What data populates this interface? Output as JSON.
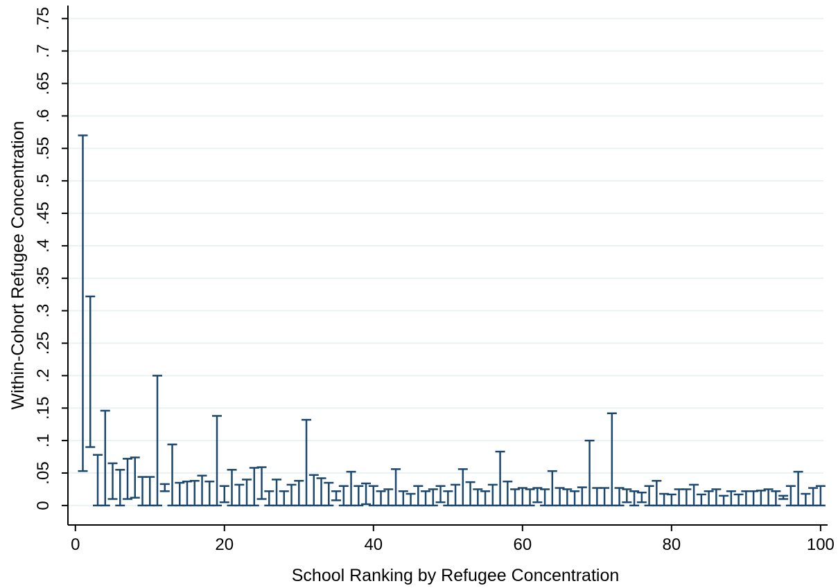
{
  "chart_data": {
    "type": "range-bar",
    "xlabel": "School Ranking by Refugee Concentration",
    "ylabel": "Within-Cohort Refugee Concentration",
    "xlim": [
      -1,
      101.5
    ],
    "ylim": [
      -0.03,
      0.77
    ],
    "xticks": [
      0,
      20,
      40,
      60,
      80,
      100
    ],
    "xtick_labels": [
      "0",
      "20",
      "40",
      "60",
      "80",
      "100"
    ],
    "yticks": [
      0,
      0.05,
      0.1,
      0.15,
      0.2,
      0.25,
      0.3,
      0.35,
      0.4,
      0.45,
      0.5,
      0.55,
      0.6,
      0.65,
      0.7,
      0.75
    ],
    "ytick_labels": [
      "0",
      ".05",
      ".1",
      ".15",
      ".2",
      ".25",
      ".3",
      ".35",
      ".4",
      ".45",
      ".5",
      ".55",
      ".6",
      ".65",
      ".7",
      ".75"
    ],
    "grid": true,
    "colors": {
      "bars": "#1a476f",
      "grid": "#eaf2f3",
      "axis": "#000000"
    },
    "x": [
      1,
      2,
      3,
      4,
      5,
      6,
      7,
      8,
      9,
      10,
      11,
      12,
      13,
      14,
      15,
      16,
      17,
      18,
      19,
      20,
      21,
      22,
      23,
      24,
      25,
      26,
      27,
      28,
      29,
      30,
      31,
      32,
      33,
      34,
      35,
      36,
      37,
      38,
      39,
      40,
      41,
      42,
      43,
      44,
      45,
      46,
      47,
      48,
      49,
      50,
      51,
      52,
      53,
      54,
      55,
      56,
      57,
      58,
      59,
      60,
      61,
      62,
      63,
      64,
      65,
      66,
      67,
      68,
      69,
      70,
      71,
      72,
      73,
      74,
      75,
      76,
      77,
      78,
      79,
      80,
      81,
      82,
      83,
      84,
      85,
      86,
      87,
      88,
      89,
      90,
      91,
      92,
      93,
      94,
      95,
      96,
      97,
      98,
      99,
      100
    ],
    "low": [
      0.053,
      0.09,
      0,
      0,
      0.01,
      0,
      0.01,
      0.012,
      0,
      0,
      0,
      0.022,
      0,
      0,
      0,
      0,
      0,
      0,
      0,
      0.005,
      0,
      0,
      0,
      0,
      0.01,
      0,
      0,
      0,
      0,
      0,
      0,
      0,
      0,
      0,
      0.008,
      0,
      0,
      0,
      0.002,
      0,
      0,
      0,
      0,
      0,
      0,
      0,
      0,
      0,
      0.005,
      0,
      0,
      0,
      0,
      0,
      0,
      0,
      0,
      0,
      0,
      0,
      0,
      0.005,
      0,
      0,
      0,
      0,
      0,
      0,
      0,
      0,
      0,
      0,
      0,
      0.005,
      0,
      0.005,
      0,
      0,
      0,
      0,
      0,
      0,
      0,
      0,
      0,
      0,
      0,
      0,
      0,
      0,
      0,
      0,
      0,
      0,
      0.01,
      0,
      0,
      0,
      0,
      0
    ],
    "high": [
      0.57,
      0.322,
      0.078,
      0.146,
      0.065,
      0.055,
      0.072,
      0.074,
      0.044,
      0.044,
      0.2,
      0.033,
      0.094,
      0.035,
      0.037,
      0.038,
      0.046,
      0.037,
      0.138,
      0.03,
      0.055,
      0.032,
      0.04,
      0.058,
      0.059,
      0.022,
      0.04,
      0.022,
      0.032,
      0.038,
      0.132,
      0.047,
      0.042,
      0.035,
      0.022,
      0.03,
      0.052,
      0.03,
      0.034,
      0.03,
      0.022,
      0.025,
      0.056,
      0.022,
      0.018,
      0.03,
      0.022,
      0.025,
      0.03,
      0.022,
      0.032,
      0.056,
      0.036,
      0.025,
      0.022,
      0.032,
      0.083,
      0.037,
      0.025,
      0.027,
      0.025,
      0.027,
      0.025,
      0.053,
      0.027,
      0.025,
      0.022,
      0.028,
      0.1,
      0.027,
      0.027,
      0.142,
      0.027,
      0.025,
      0.022,
      0.02,
      0.03,
      0.038,
      0.018,
      0.017,
      0.025,
      0.025,
      0.032,
      0.017,
      0.022,
      0.025,
      0.015,
      0.022,
      0.017,
      0.022,
      0.022,
      0.023,
      0.025,
      0.022,
      0.015,
      0.03,
      0.052,
      0.018,
      0.027,
      0.03
    ]
  }
}
